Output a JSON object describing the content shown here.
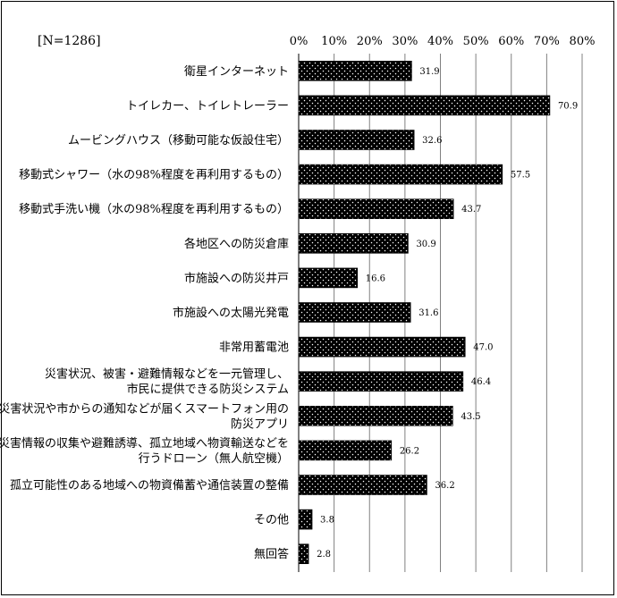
{
  "chart_data": {
    "type": "bar",
    "orientation": "horizontal",
    "note": "[N=1286]",
    "xlim": [
      0,
      80
    ],
    "ticks": [
      "0%",
      "10%",
      "20%",
      "30%",
      "40%",
      "50%",
      "60%",
      "70%",
      "80%"
    ],
    "grid": true,
    "bar_fill": "black with white dot pattern",
    "categories": [
      [
        "衛星インターネット"
      ],
      [
        "トイレカー、トイレトレーラー"
      ],
      [
        "ムービングハウス（移動可能な仮設住宅）"
      ],
      [
        "移動式シャワー（水の98%程度を再利用するもの）"
      ],
      [
        "移動式手洗い機（水の98%程度を再利用するもの）"
      ],
      [
        "各地区への防災倉庫"
      ],
      [
        "市施設への防災井戸"
      ],
      [
        "市施設への太陽光発電"
      ],
      [
        "非常用蓄電池"
      ],
      [
        "災害状況、被害・避難情報などを一元管理し、",
        "市民に提供できる防災システム"
      ],
      [
        "災害状況や市からの通知などが届くスマートフォン用の",
        "防災アプリ"
      ],
      [
        "災害情報の収集や避難誘導、孤立地域へ物資輸送などを",
        "行うドローン（無人航空機）"
      ],
      [
        "孤立可能性のある地域への物資備蓄や通信装置の整備"
      ],
      [
        "その他"
      ],
      [
        "無回答"
      ]
    ],
    "values": [
      31.9,
      70.9,
      32.6,
      57.5,
      43.7,
      30.9,
      16.6,
      31.6,
      47.0,
      46.4,
      43.5,
      26.2,
      36.2,
      3.8,
      2.8
    ],
    "value_labels": [
      "31.9",
      "70.9",
      "32.6",
      "57.5",
      "43.7",
      "30.9",
      "16.6",
      "31.6",
      "47.0",
      "46.4",
      "43.5",
      "26.2",
      "36.2",
      "3.8",
      "2.8"
    ]
  }
}
